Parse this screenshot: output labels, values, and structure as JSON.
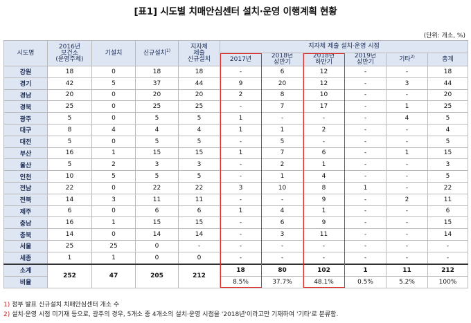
{
  "title": "[표1] 시도별 치매안심센터 설치·운영 이행계획 현황",
  "unit": "(단위: 개소, %)",
  "headers": {
    "region": "시도명",
    "health_center": "2016년\n보건소\n(운영주체)",
    "existing": "기설치",
    "new_install": "신규설치",
    "new_install_sup": "1)",
    "local_submit": "지자체\n제출\n신규설치",
    "group": "지자체 제출 설치·운영 시점",
    "periods": [
      "2017년",
      "2018년\n상반기",
      "2018년\n하반기",
      "2019년\n상반기",
      "기타",
      "총계"
    ],
    "other_sup": "2)"
  },
  "rows": [
    {
      "region": "강원",
      "hc": "18",
      "ex": "0",
      "ni": "18",
      "ls": "18",
      "p": [
        "-",
        "6",
        "12",
        "-",
        "-",
        "18"
      ]
    },
    {
      "region": "경기",
      "hc": "42",
      "ex": "5",
      "ni": "37",
      "ls": "44",
      "p": [
        "9",
        "20",
        "12",
        "-",
        "3",
        "44"
      ]
    },
    {
      "region": "경남",
      "hc": "20",
      "ex": "0",
      "ni": "20",
      "ls": "20",
      "p": [
        "2",
        "8",
        "10",
        "-",
        "-",
        "20"
      ]
    },
    {
      "region": "경북",
      "hc": "25",
      "ex": "0",
      "ni": "25",
      "ls": "25",
      "p": [
        "-",
        "7",
        "17",
        "-",
        "1",
        "25"
      ]
    },
    {
      "region": "광주",
      "hc": "5",
      "ex": "0",
      "ni": "5",
      "ls": "5",
      "p": [
        "1",
        "-",
        "-",
        "-",
        "4",
        "5"
      ]
    },
    {
      "region": "대구",
      "hc": "8",
      "ex": "4",
      "ni": "4",
      "ls": "4",
      "p": [
        "1",
        "1",
        "2",
        "-",
        "-",
        "4"
      ]
    },
    {
      "region": "대전",
      "hc": "5",
      "ex": "0",
      "ni": "5",
      "ls": "5",
      "p": [
        "-",
        "5",
        "-",
        "-",
        "-",
        "5"
      ]
    },
    {
      "region": "부산",
      "hc": "16",
      "ex": "1",
      "ni": "15",
      "ls": "15",
      "p": [
        "1",
        "7",
        "6",
        "-",
        "1",
        "15"
      ]
    },
    {
      "region": "울산",
      "hc": "5",
      "ex": "2",
      "ni": "3",
      "ls": "3",
      "p": [
        "-",
        "2",
        "1",
        "-",
        "-",
        "3"
      ]
    },
    {
      "region": "인천",
      "hc": "10",
      "ex": "5",
      "ni": "5",
      "ls": "5",
      "p": [
        "-",
        "1",
        "4",
        "-",
        "-",
        "5"
      ]
    },
    {
      "region": "전남",
      "hc": "22",
      "ex": "0",
      "ni": "22",
      "ls": "22",
      "p": [
        "3",
        "10",
        "8",
        "1",
        "-",
        "22"
      ]
    },
    {
      "region": "전북",
      "hc": "14",
      "ex": "3",
      "ni": "11",
      "ls": "11",
      "p": [
        "-",
        "-",
        "9",
        "-",
        "2",
        "11"
      ]
    },
    {
      "region": "제주",
      "hc": "6",
      "ex": "0",
      "ni": "6",
      "ls": "6",
      "p": [
        "1",
        "4",
        "1",
        "-",
        "-",
        "6"
      ]
    },
    {
      "region": "충남",
      "hc": "16",
      "ex": "1",
      "ni": "15",
      "ls": "15",
      "p": [
        "-",
        "6",
        "9",
        "-",
        "-",
        "15"
      ]
    },
    {
      "region": "충북",
      "hc": "14",
      "ex": "0",
      "ni": "14",
      "ls": "14",
      "p": [
        "-",
        "3",
        "11",
        "-",
        "-",
        "14"
      ]
    },
    {
      "region": "서울",
      "hc": "25",
      "ex": "25",
      "ni": "0",
      "ls": "-",
      "p": [
        "-",
        "-",
        "-",
        "-",
        "-",
        "-"
      ]
    },
    {
      "region": "세종",
      "hc": "1",
      "ex": "1",
      "ni": "0",
      "ls": "0",
      "p": [
        "-",
        "-",
        "-",
        "-",
        "-",
        "-"
      ]
    }
  ],
  "total": {
    "label": "소계",
    "hc": "252",
    "ex": "47",
    "ni": "205",
    "ls": "212",
    "p": [
      "18",
      "80",
      "102",
      "1",
      "11",
      "212"
    ]
  },
  "ratio": {
    "label": "비율",
    "p": [
      "8.5%",
      "37.7%",
      "48.1%",
      "0.5%",
      "5.2%",
      "100%"
    ]
  },
  "notes": [
    {
      "mark": "1)",
      "text": " 정부 발표 신규설치 치매안심센터 개소 수"
    },
    {
      "mark": "2)",
      "text": " 설치·운영 시점 미기재 등으로, 광주의 경우, 5개소 중 4개소의 설치·운영 시점을 '2018년'이라고만 기재하여 '기타'로 분류함."
    }
  ],
  "highlight_color": "#e02a2a"
}
